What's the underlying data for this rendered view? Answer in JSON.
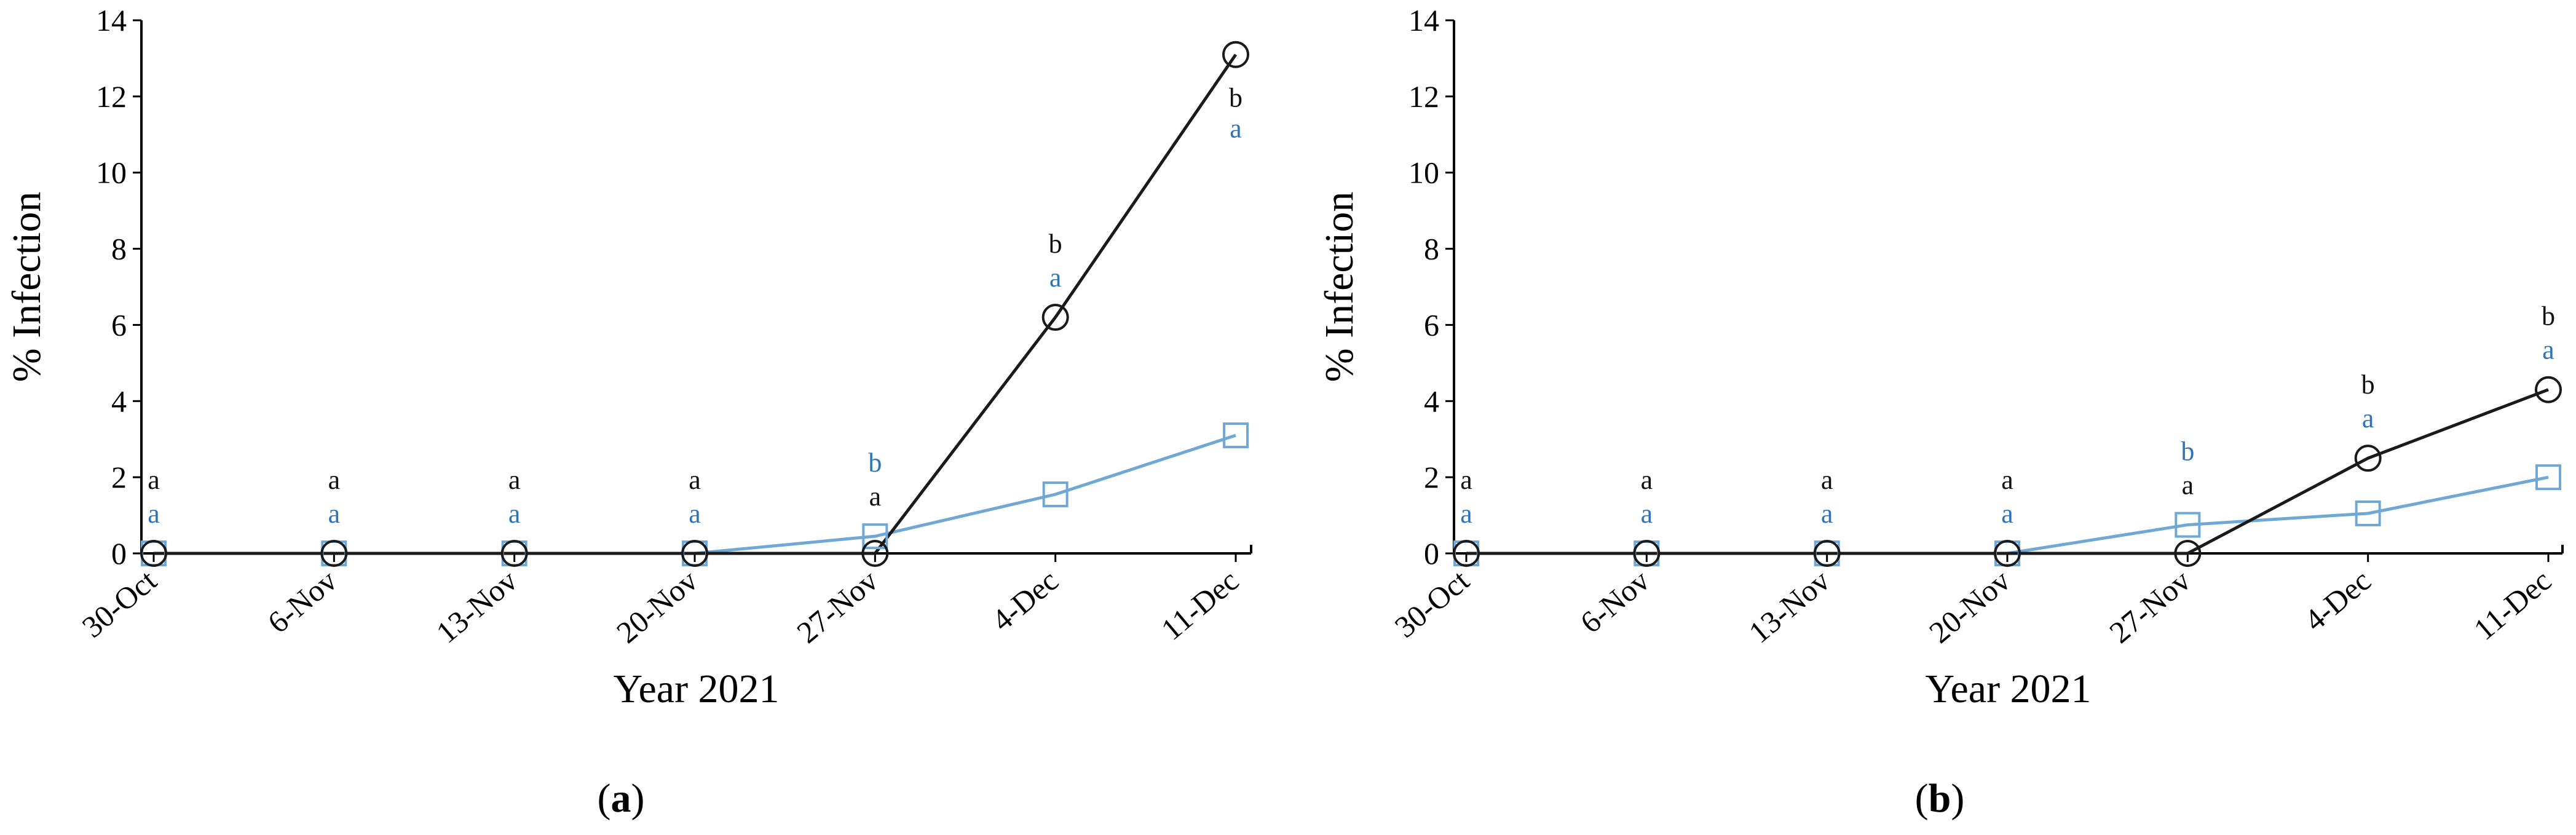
{
  "colors": {
    "series_black": "#1a1a1a",
    "series_blue": "#6fa8d4",
    "label_blue": "#2e75b6",
    "label_black": "#111111"
  },
  "chart_data": [
    {
      "type": "line",
      "panel_label": "a",
      "xlabel": "Year 2021",
      "ylabel": "% Infection",
      "ylim": [
        0,
        14
      ],
      "yticks": [
        0,
        2,
        4,
        6,
        8,
        10,
        12,
        14
      ],
      "categories": [
        "30-Oct",
        "6-Nov",
        "13-Nov",
        "20-Nov",
        "27-Nov",
        "4-Dec",
        "11-Dec"
      ],
      "grid": false,
      "legend": "none",
      "series": [
        {
          "marker": "circle",
          "color": "#1a1a1a",
          "x": [
            0,
            1,
            2,
            3,
            4,
            5,
            6
          ],
          "values": [
            0,
            0,
            0,
            0,
            0,
            6.2,
            13.1
          ],
          "letters": [
            "a",
            "a",
            "a",
            "a",
            "a",
            "b",
            "b"
          ]
        },
        {
          "marker": "square",
          "color": "#6fa8d4",
          "x": [
            0,
            1,
            2,
            3,
            4,
            5,
            6
          ],
          "values": [
            0,
            0,
            0,
            0,
            0.45,
            1.55,
            3.1
          ],
          "letters": [
            "a",
            "a",
            "a",
            "a",
            "b",
            "a",
            "a"
          ]
        }
      ]
    },
    {
      "type": "line",
      "panel_label": "b",
      "xlabel": "Year 2021",
      "ylabel": "% Infection",
      "ylim": [
        0,
        14
      ],
      "yticks": [
        0,
        2,
        4,
        6,
        8,
        10,
        12,
        14
      ],
      "categories": [
        "30-Oct",
        "6-Nov",
        "13-Nov",
        "20-Nov",
        "27-Nov",
        "4-Dec",
        "11-Dec"
      ],
      "grid": false,
      "legend": "none",
      "series": [
        {
          "marker": "circle",
          "color": "#1a1a1a",
          "x": [
            0,
            1,
            2,
            3,
            4,
            5,
            6
          ],
          "values": [
            0,
            0,
            0,
            0,
            0,
            2.5,
            4.3
          ],
          "letters": [
            "a",
            "a",
            "a",
            "a",
            "a",
            "b",
            "b"
          ]
        },
        {
          "marker": "square",
          "color": "#6fa8d4",
          "x": [
            0,
            1,
            2,
            3,
            4,
            5,
            6
          ],
          "values": [
            0,
            0,
            0,
            0,
            0.75,
            1.05,
            2.0
          ],
          "letters": [
            "a",
            "a",
            "a",
            "a",
            "b",
            "a",
            "a"
          ]
        }
      ]
    }
  ]
}
